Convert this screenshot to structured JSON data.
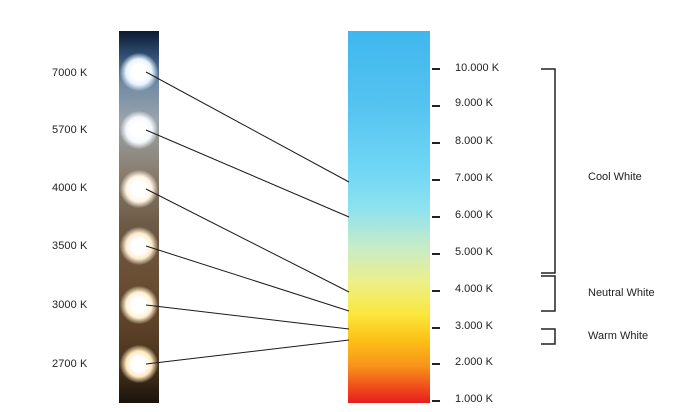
{
  "led_labels": [
    "7000 K",
    "5700 K",
    "4000 K",
    "3500 K",
    "3000 K",
    "2700 K"
  ],
  "scale_ticks": [
    "10.000 K",
    "9.000 K",
    "8.000 K",
    "7.000 K",
    "6.000 K",
    "5.000 K",
    "4.000 K",
    "3.000 K",
    "2.000 K",
    "1.000 K"
  ],
  "groups": {
    "cool": "Cool White",
    "neutral": "Neutral White",
    "warm": "Warm White"
  },
  "colors": {
    "led_7000": "#e8f4ff",
    "led_5700": "#f4f8ff",
    "led_4000": "#fff4e2",
    "led_3500": "#ffeccf",
    "led_3000": "#fff0d2",
    "led_2700": "#ffe7bd",
    "line": "#1a1a1a"
  }
}
